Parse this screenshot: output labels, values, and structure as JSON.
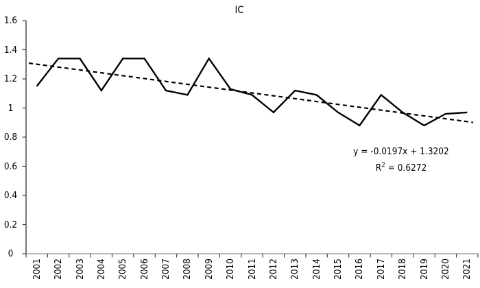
{
  "chart_data": {
    "type": "line",
    "title": "IC",
    "categories": [
      "2001",
      "2002",
      "2003",
      "2004",
      "2005",
      "2006",
      "2007",
      "2008",
      "2009",
      "2010",
      "2011",
      "2012",
      "2013",
      "2014",
      "2015",
      "2016",
      "2017",
      "2018",
      "2019",
      "2020",
      "2021"
    ],
    "series": [
      {
        "name": "IC",
        "color": "#000000",
        "style": "solid",
        "values": [
          1.15,
          1.34,
          1.34,
          1.12,
          1.34,
          1.34,
          1.12,
          1.09,
          1.34,
          1.13,
          1.09,
          0.97,
          1.12,
          1.09,
          0.97,
          0.88,
          1.09,
          0.97,
          0.88,
          0.96,
          0.97
        ]
      }
    ],
    "trendline": {
      "type": "linear",
      "slope": -0.0197,
      "intercept": 1.3202,
      "r2": 0.6272,
      "color": "#000000",
      "style": "dashed"
    },
    "annotation": {
      "equation": "y = -0.0197x  +  1.3202",
      "r2_label": "R",
      "r2_exponent": "2",
      "r2_value": " = 0.6272"
    },
    "xlabel": "",
    "ylabel": "",
    "ylim": [
      0,
      1.6
    ],
    "ytick_step": 0.2,
    "yticklabels": [
      "0",
      "0.2",
      "0.4",
      "0.6",
      "0.8",
      "1",
      "1.2",
      "1.4",
      "1.6"
    ],
    "x_label_rotation": -90,
    "grid": false,
    "legend": "none",
    "colors": {
      "background": "#ffffff",
      "text": "#000000",
      "x_axis": "#a3a3a3",
      "y_axis": "#3d3d3d",
      "tick": "#404040"
    }
  }
}
